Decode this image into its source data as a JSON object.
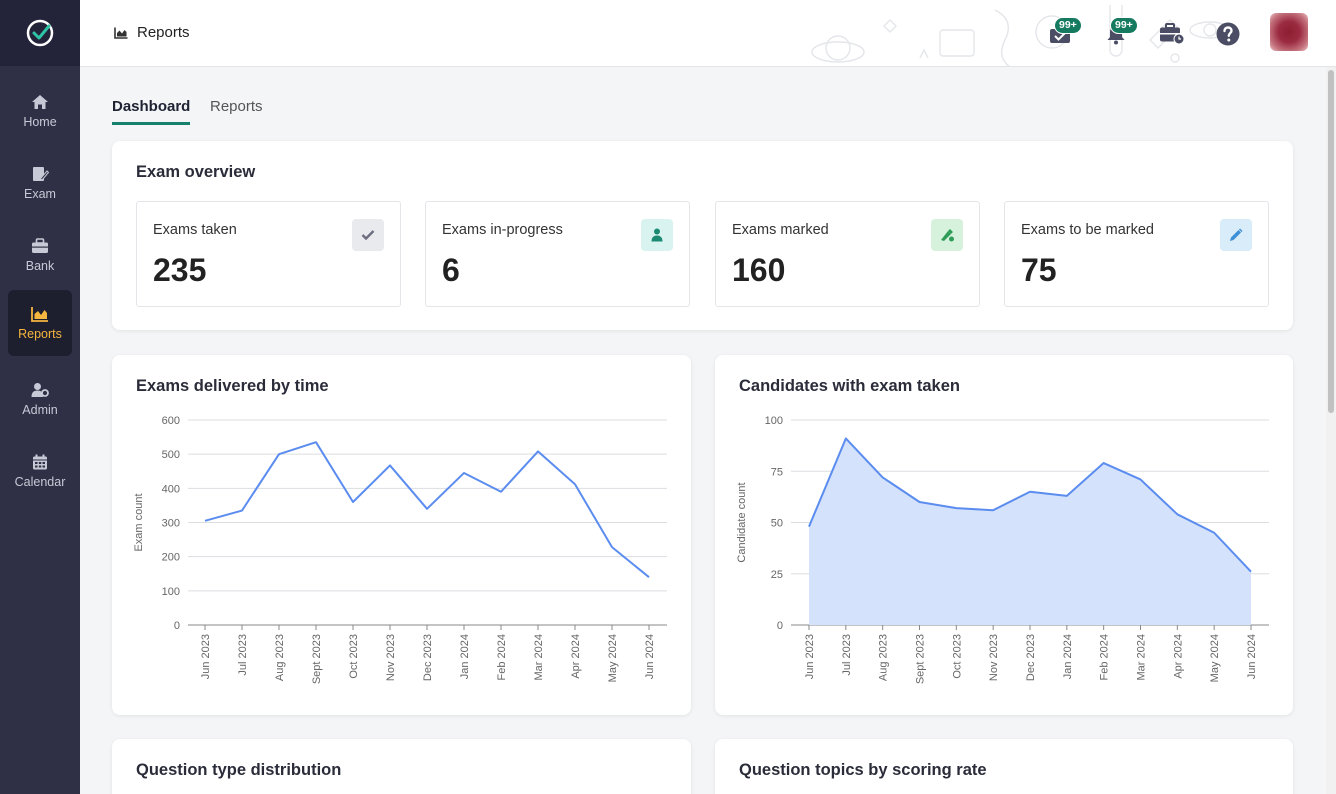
{
  "header": {
    "breadcrumb": "Reports",
    "badge_exams": "99+",
    "badge_notifications": "99+"
  },
  "sidebar": {
    "items": [
      {
        "label": "Home",
        "icon": "home-icon"
      },
      {
        "label": "Exam",
        "icon": "exam-icon"
      },
      {
        "label": "Bank",
        "icon": "bank-icon"
      },
      {
        "label": "Reports",
        "icon": "reports-icon",
        "active": true
      },
      {
        "label": "Admin",
        "icon": "admin-icon"
      },
      {
        "label": "Calendar",
        "icon": "calendar-icon"
      }
    ]
  },
  "tabs": [
    {
      "label": "Dashboard",
      "active": true
    },
    {
      "label": "Reports"
    }
  ],
  "overview": {
    "title": "Exam overview",
    "stats": [
      {
        "label": "Exams taken",
        "value": "235",
        "icon": "check-icon",
        "color": "#e9eaee"
      },
      {
        "label": "Exams in-progress",
        "value": "6",
        "icon": "person-icon",
        "color": "#d9f4f0"
      },
      {
        "label": "Exams marked",
        "value": "160",
        "icon": "marker-icon",
        "color": "#d6f2dd"
      },
      {
        "label": "Exams to be marked",
        "value": "75",
        "icon": "pen-icon",
        "color": "#d8ecfa"
      }
    ]
  },
  "cards": {
    "question_types": "Question type distribution",
    "question_topics": "Question topics by scoring rate"
  },
  "chart_data": [
    {
      "type": "line",
      "title": "Exams delivered by time",
      "ylabel": "Exam count",
      "x": [
        "Jun 2023",
        "Jul 2023",
        "Aug 2023",
        "Sept 2023",
        "Oct 2023",
        "Nov 2023",
        "Dec 2023",
        "Jan 2024",
        "Feb 2024",
        "Mar 2024",
        "Apr 2024",
        "May 2024",
        "Jun 2024"
      ],
      "values": [
        305,
        335,
        500,
        535,
        360,
        467,
        340,
        445,
        390,
        508,
        412,
        228,
        140
      ],
      "ylim": [
        0,
        600
      ],
      "yticks": [
        0,
        100,
        200,
        300,
        400,
        500,
        600
      ],
      "color": "#5b8cef",
      "grid": true
    },
    {
      "type": "area",
      "title": "Candidates with exam taken",
      "ylabel": "Candidate count",
      "x": [
        "Jun 2023",
        "Jul 2023",
        "Aug 2023",
        "Sept 2023",
        "Oct 2023",
        "Nov 2023",
        "Dec 2023",
        "Jan 2024",
        "Feb 2024",
        "Mar 2024",
        "Apr 2024",
        "May 2024",
        "Jun 2024"
      ],
      "values": [
        48,
        91,
        72,
        60,
        57,
        56,
        65,
        63,
        79,
        71,
        54,
        45,
        26
      ],
      "ylim": [
        0,
        100
      ],
      "yticks": [
        0,
        25,
        50,
        75,
        100
      ],
      "color": "#5b8cef",
      "fill": "#d5e2fb",
      "grid": true
    }
  ]
}
